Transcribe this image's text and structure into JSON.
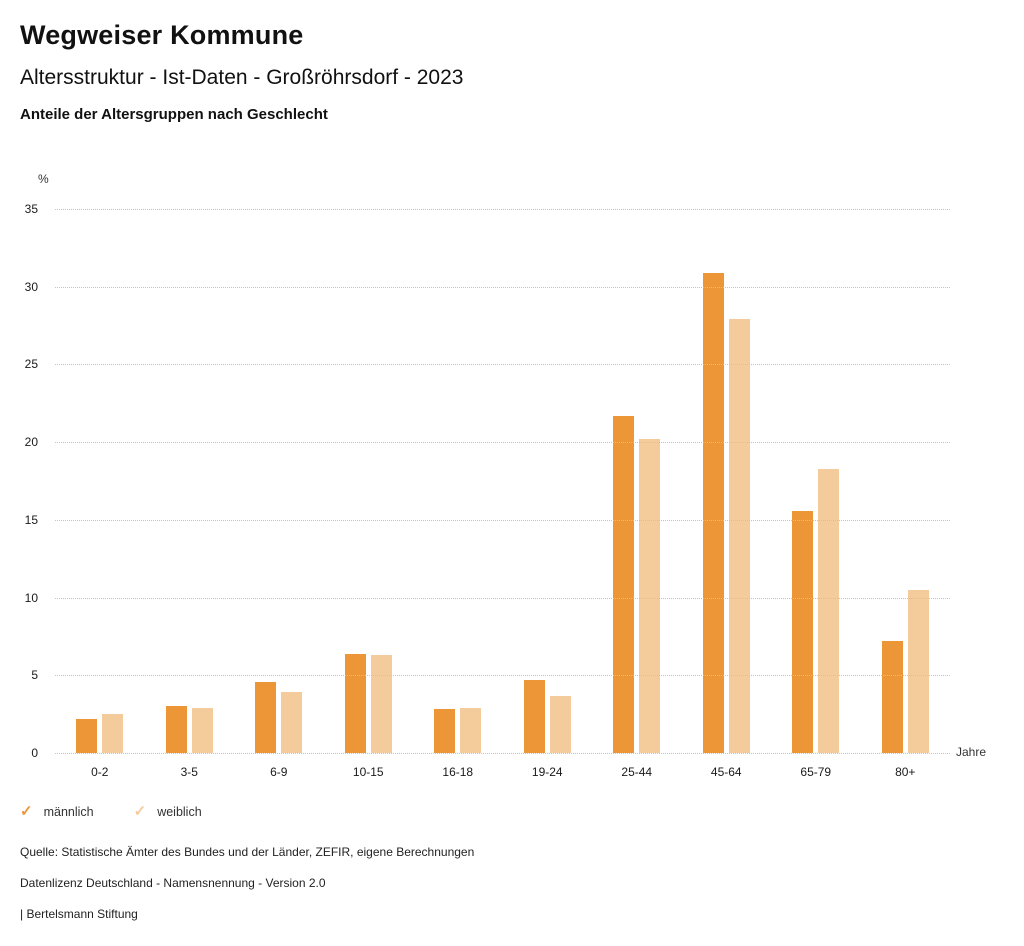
{
  "header": {
    "title": "Wegweiser Kommune",
    "subtitle": "Altersstruktur - Ist-Daten - Großröhrsdorf - 2023",
    "caption": "Anteile der Altersgruppen nach Geschlecht"
  },
  "chart_data": {
    "type": "bar",
    "title": "Anteile der Altersgruppen nach Geschlecht",
    "categories": [
      "0-2",
      "3-5",
      "6-9",
      "10-15",
      "16-18",
      "19-24",
      "25-44",
      "45-64",
      "65-79",
      "80+"
    ],
    "series": [
      {
        "name": "männlich",
        "color": "#EC9637",
        "values": [
          2.2,
          3.0,
          4.6,
          6.4,
          2.8,
          4.7,
          21.7,
          30.9,
          15.6,
          7.2
        ]
      },
      {
        "name": "weiblich",
        "color": "#F4CC9C",
        "values": [
          2.5,
          2.9,
          3.9,
          6.3,
          2.9,
          3.7,
          20.2,
          27.9,
          18.3,
          10.5
        ]
      }
    ],
    "ylabel": "%",
    "xlabel": "Jahre",
    "ylim": [
      0,
      35
    ],
    "yticks": [
      0,
      5,
      10,
      15,
      20,
      25,
      30,
      35
    ],
    "grid": "horizontal-dotted",
    "legend_position": "bottom-left"
  },
  "legend": {
    "check_glyph": "✓",
    "items": [
      {
        "label": "männlich",
        "color": "#EC9637"
      },
      {
        "label": "weiblich",
        "color": "#F4CC9C"
      }
    ]
  },
  "footer": {
    "source": "Quelle: Statistische Ämter des Bundes und der Länder, ZEFIR, eigene Berechnungen",
    "license": "Datenlizenz Deutschland - Namensnennung - Version 2.0",
    "attribution": "| Bertelsmann Stiftung"
  }
}
